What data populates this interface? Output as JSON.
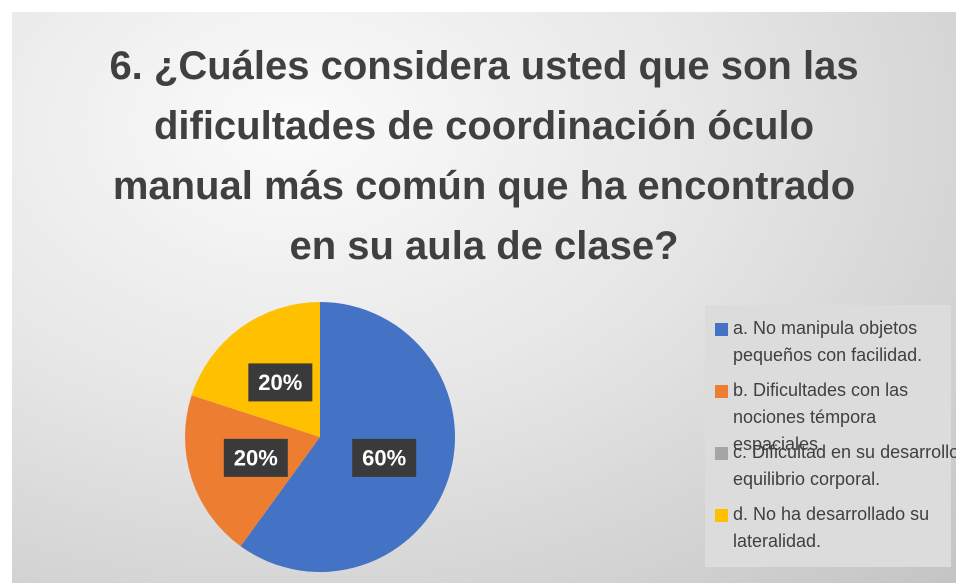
{
  "chart_data": {
    "type": "pie",
    "title": "6. ¿Cuáles considera usted que son las dificultades de coordinación óculo manual más común que ha encontrado en su aula de clase?",
    "categories": [
      "a. No manipula objetos pequeños con facilidad.",
      "b. Dificultades con las nociones témpora espaciales.",
      "c. Dificultad en su desarrollo equilibrio corporal.",
      "d. No ha desarrollado su lateralidad."
    ],
    "values": [
      60,
      20,
      0,
      20
    ],
    "value_labels": [
      "60%",
      "20%",
      null,
      "20%"
    ],
    "colors": [
      "#4472c4",
      "#ed7d31",
      "#a5a5a5",
      "#ffc000"
    ],
    "legend": "right"
  }
}
